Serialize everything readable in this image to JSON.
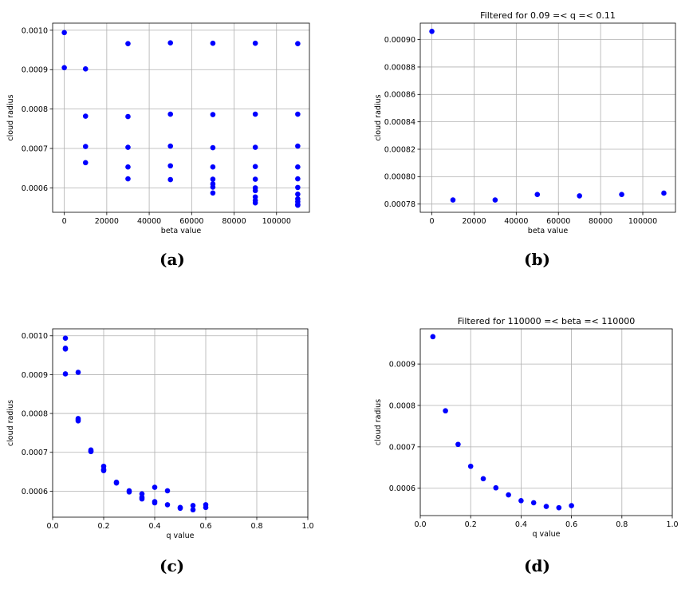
{
  "captions": {
    "a": "(a)",
    "b": "(b)",
    "c": "(c)",
    "d": "(d)"
  },
  "chart_data": [
    {
      "id": "a",
      "type": "scatter",
      "title": "",
      "xlabel": "beta value",
      "ylabel": "cloud radius",
      "xlim": [
        -5500,
        115500
      ],
      "ylim": [
        0.000538,
        0.001018
      ],
      "xticks": [
        0,
        20000,
        40000,
        60000,
        80000,
        100000
      ],
      "xtick_labels": [
        "0",
        "20000",
        "40000",
        "60000",
        "80000",
        "100000"
      ],
      "yticks": [
        0.0006,
        0.0007,
        0.0008,
        0.0009,
        0.001
      ],
      "ytick_labels": [
        "0.0006",
        "0.0007",
        "0.0008",
        "0.0009",
        "0.0010"
      ],
      "grid": true,
      "color": "#0000ff",
      "points": [
        [
          0,
          0.000994
        ],
        [
          0,
          0.000905
        ],
        [
          10000,
          0.000902
        ],
        [
          10000,
          0.000782
        ],
        [
          10000,
          0.000705
        ],
        [
          10000,
          0.000664
        ],
        [
          30000,
          0.000966
        ],
        [
          30000,
          0.000781
        ],
        [
          30000,
          0.000703
        ],
        [
          30000,
          0.000653
        ],
        [
          30000,
          0.000623
        ],
        [
          50000,
          0.000968
        ],
        [
          50000,
          0.000787
        ],
        [
          50000,
          0.000706
        ],
        [
          50000,
          0.000656
        ],
        [
          50000,
          0.000621
        ],
        [
          70000,
          0.000967
        ],
        [
          70000,
          0.000786
        ],
        [
          70000,
          0.000702
        ],
        [
          70000,
          0.000653
        ],
        [
          70000,
          0.000622
        ],
        [
          70000,
          0.00061
        ],
        [
          70000,
          0.000602
        ],
        [
          70000,
          0.000587
        ],
        [
          90000,
          0.000967
        ],
        [
          90000,
          0.000787
        ],
        [
          90000,
          0.000703
        ],
        [
          90000,
          0.000654
        ],
        [
          90000,
          0.000622
        ],
        [
          90000,
          0.0006
        ],
        [
          90000,
          0.000593
        ],
        [
          90000,
          0.000577
        ],
        [
          90000,
          0.000568
        ],
        [
          90000,
          0.000562
        ],
        [
          110000,
          0.000966
        ],
        [
          110000,
          0.000787
        ],
        [
          110000,
          0.000706
        ],
        [
          110000,
          0.000653
        ],
        [
          110000,
          0.000623
        ],
        [
          110000,
          0.000601
        ],
        [
          110000,
          0.000584
        ],
        [
          110000,
          0.000572
        ],
        [
          110000,
          0.000565
        ],
        [
          110000,
          0.000558
        ],
        [
          110000,
          0.000556
        ]
      ]
    },
    {
      "id": "b",
      "type": "scatter",
      "title": "Filtered for 0.09 =< q =< 0.11",
      "xlabel": "beta value",
      "ylabel": "cloud radius",
      "xlim": [
        -5500,
        115500
      ],
      "ylim": [
        0.000774,
        0.000912
      ],
      "xticks": [
        0,
        20000,
        40000,
        60000,
        80000,
        100000
      ],
      "xtick_labels": [
        "0",
        "20000",
        "40000",
        "60000",
        "80000",
        "100000"
      ],
      "yticks": [
        0.00078,
        0.0008,
        0.00082,
        0.00084,
        0.00086,
        0.00088,
        0.0009
      ],
      "ytick_labels": [
        "0.00078",
        "0.00080",
        "0.00082",
        "0.00084",
        "0.00086",
        "0.00088",
        "0.00090"
      ],
      "grid": true,
      "color": "#0000ff",
      "points": [
        [
          0,
          0.000906
        ],
        [
          10000,
          0.000783
        ],
        [
          30000,
          0.000783
        ],
        [
          50000,
          0.000787
        ],
        [
          70000,
          0.000786
        ],
        [
          90000,
          0.000787
        ],
        [
          110000,
          0.000788
        ]
      ]
    },
    {
      "id": "c",
      "type": "scatter",
      "title": "",
      "xlabel": "q value",
      "ylabel": "cloud radius",
      "xlim": [
        0.0,
        1.0
      ],
      "ylim": [
        0.000533,
        0.001018
      ],
      "xticks": [
        0.0,
        0.2,
        0.4,
        0.6,
        0.8,
        1.0
      ],
      "xtick_labels": [
        "0.0",
        "0.2",
        "0.4",
        "0.6",
        "0.8",
        "1.0"
      ],
      "yticks": [
        0.0006,
        0.0007,
        0.0008,
        0.0009,
        0.001
      ],
      "ytick_labels": [
        "0.0006",
        "0.0007",
        "0.0008",
        "0.0009",
        "0.0010"
      ],
      "grid": true,
      "color": "#0000ff",
      "points": [
        [
          0.05,
          0.000994
        ],
        [
          0.05,
          0.000968
        ],
        [
          0.05,
          0.000966
        ],
        [
          0.05,
          0.000902
        ],
        [
          0.1,
          0.000906
        ],
        [
          0.1,
          0.000787
        ],
        [
          0.1,
          0.000784
        ],
        [
          0.1,
          0.000781
        ],
        [
          0.15,
          0.000706
        ],
        [
          0.15,
          0.000703
        ],
        [
          0.15,
          0.000702
        ],
        [
          0.2,
          0.000664
        ],
        [
          0.2,
          0.000656
        ],
        [
          0.2,
          0.000653
        ],
        [
          0.25,
          0.000623
        ],
        [
          0.25,
          0.000621
        ],
        [
          0.3,
          0.000601
        ],
        [
          0.3,
          0.000598
        ],
        [
          0.35,
          0.000593
        ],
        [
          0.35,
          0.000584
        ],
        [
          0.35,
          0.00058
        ],
        [
          0.4,
          0.00061
        ],
        [
          0.4,
          0.000573
        ],
        [
          0.4,
          0.00057
        ],
        [
          0.45,
          0.000601
        ],
        [
          0.45,
          0.000565
        ],
        [
          0.5,
          0.000558
        ],
        [
          0.5,
          0.000556
        ],
        [
          0.55,
          0.000563
        ],
        [
          0.55,
          0.000552
        ],
        [
          0.6,
          0.000565
        ],
        [
          0.6,
          0.000558
        ]
      ]
    },
    {
      "id": "d",
      "type": "scatter",
      "title": "Filtered for 110000 =< beta =< 110000",
      "xlabel": "q value",
      "ylabel": "cloud radius",
      "xlim": [
        0.0,
        1.0
      ],
      "ylim": [
        0.000534,
        0.000985
      ],
      "xticks": [
        0.0,
        0.2,
        0.4,
        0.6,
        0.8,
        1.0
      ],
      "xtick_labels": [
        "0.0",
        "0.2",
        "0.4",
        "0.6",
        "0.8",
        "1.0"
      ],
      "yticks": [
        0.0006,
        0.0007,
        0.0008,
        0.0009
      ],
      "ytick_labels": [
        "0.0006",
        "0.0007",
        "0.0008",
        "0.0009"
      ],
      "grid": true,
      "color": "#0000ff",
      "points": [
        [
          0.05,
          0.000966
        ],
        [
          0.1,
          0.000787
        ],
        [
          0.15,
          0.000706
        ],
        [
          0.2,
          0.000653
        ],
        [
          0.25,
          0.000623
        ],
        [
          0.3,
          0.000601
        ],
        [
          0.35,
          0.000584
        ],
        [
          0.4,
          0.00057
        ],
        [
          0.45,
          0.000565
        ],
        [
          0.5,
          0.000556
        ],
        [
          0.55,
          0.000553
        ],
        [
          0.6,
          0.000558
        ]
      ]
    }
  ]
}
